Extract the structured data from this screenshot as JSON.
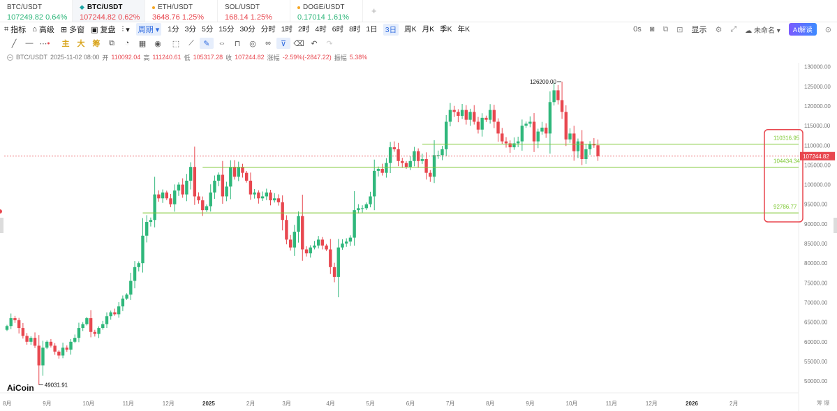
{
  "tabs": [
    {
      "symbol": "BTC/USDT",
      "price": "107249.82",
      "change": "0.64%",
      "trend": "up",
      "icon": "none"
    },
    {
      "symbol": "BTC/USDT",
      "price": "107244.82",
      "change": "0.62%",
      "trend": "down",
      "icon": "exchange-icon",
      "active": true
    },
    {
      "symbol": "ETH/USDT",
      "price": "3648.76",
      "change": "1.25%",
      "trend": "down",
      "icon": "orange-dot-icon"
    },
    {
      "symbol": "SOL/USDT",
      "price": "168.14",
      "change": "1.25%",
      "trend": "down",
      "icon": "none"
    },
    {
      "symbol": "DOGE/USDT",
      "price": "0.17014",
      "change": "1.61%",
      "trend": "up",
      "icon": "orange-dot-icon"
    }
  ],
  "add_tab": "+",
  "toolbar": {
    "indicators": "指标",
    "advanced": "高级",
    "multi_chart": "多窗",
    "replay": "复盘",
    "period": "周期",
    "timeframes": [
      "1分",
      "3分",
      "5分",
      "15分",
      "30分",
      "分时",
      "1时",
      "2时",
      "4时",
      "6时",
      "8时",
      "1日",
      "3日",
      "周K",
      "月K",
      "季K",
      "年K"
    ],
    "selected_timeframe": "3日",
    "countdown": "0s",
    "display": "显示",
    "layout_name": "未命名",
    "ai_label": "AI解读"
  },
  "drawing_tools": {
    "main_label": "主",
    "large_label": "大",
    "chip_label": "筹"
  },
  "infobar": {
    "symbol": "BTC/USDT",
    "datetime": "2025-11-02 08:00",
    "open_label": "开",
    "open": "110092.04",
    "high_label": "高",
    "high": "111240.61",
    "low_label": "低",
    "low": "105317.28",
    "close_label": "收",
    "close": "107244.82",
    "change_label": "涨幅",
    "change": "-2.59%(-2847.22)",
    "amp_label": "振幅",
    "amp": "5.38%"
  },
  "colors": {
    "up": "#2fb77b",
    "down": "#e8474f",
    "level_line": "#7dc832",
    "highlight_box": "#e8474f"
  },
  "chart_data": {
    "type": "candlestick",
    "symbol": "BTC/USDT",
    "interval": "3日",
    "ylim": [
      47000,
      131000
    ],
    "y_ticks": [
      50000,
      55000,
      60000,
      65000,
      70000,
      75000,
      80000,
      85000,
      90000,
      95000,
      100000,
      105000,
      110000,
      115000,
      120000,
      125000,
      130000
    ],
    "y_tick_labels": [
      "50000.00",
      "55000.00",
      "60000.00",
      "65000.00",
      "70000.00",
      "75000.00",
      "80000.00",
      "85000.00",
      "90000.00",
      "95000.00",
      "100000.00",
      "105000.00",
      "110000.00",
      "115000.00",
      "120000.00",
      "125000.00",
      "130000.00"
    ],
    "x_ticks": [
      {
        "label": "8月",
        "t": 0
      },
      {
        "label": "9月",
        "t": 10
      },
      {
        "label": "10月",
        "t": 20
      },
      {
        "label": "11月",
        "t": 30
      },
      {
        "label": "12月",
        "t": 40
      },
      {
        "label": "2025",
        "t": 50
      },
      {
        "label": "2月",
        "t": 61
      },
      {
        "label": "3月",
        "t": 70
      },
      {
        "label": "4月",
        "t": 81
      },
      {
        "label": "5月",
        "t": 91
      },
      {
        "label": "6月",
        "t": 101
      },
      {
        "label": "7月",
        "t": 111
      },
      {
        "label": "8月",
        "t": 121
      },
      {
        "label": "9月",
        "t": 131
      },
      {
        "label": "10月",
        "t": 141
      },
      {
        "label": "11月",
        "t": 151
      },
      {
        "label": "12月",
        "t": 161
      },
      {
        "label": "2026",
        "t": 171
      },
      {
        "label": "2月",
        "t": 182
      }
    ],
    "close_series": [
      64000,
      66000,
      65500,
      63500,
      61500,
      60000,
      61000,
      59000,
      54000,
      58500,
      60000,
      59000,
      57500,
      56500,
      58500,
      58000,
      60000,
      61000,
      63500,
      64500,
      66000,
      62500,
      62000,
      63500,
      64500,
      66500,
      67500,
      67000,
      69000,
      71000,
      72000,
      75500,
      79000,
      80000,
      87000,
      90500,
      91000,
      97500,
      96500,
      98000,
      96500,
      95000,
      98500,
      100000,
      97500,
      101000,
      104500,
      97000,
      96000,
      93500,
      94500,
      98000,
      101000,
      102500,
      97000,
      99500,
      104500,
      102000,
      104500,
      103000,
      101000,
      97500,
      98000,
      96500,
      97000,
      98000,
      96000,
      96500,
      95500,
      91000,
      86000,
      84000,
      88000,
      92000,
      83500,
      82500,
      84000,
      84500,
      86000,
      84500,
      83500,
      79000,
      76500,
      84000,
      85000,
      85500,
      86500,
      93500,
      94000,
      94000,
      95000,
      97000,
      103500,
      104000,
      103000,
      105500,
      109500,
      109000,
      106000,
      105500,
      104500,
      106000,
      108500,
      106000,
      106500,
      103000,
      102000,
      107500,
      107500,
      109000,
      116000,
      119000,
      118500,
      117500,
      119000,
      116500,
      118500,
      116000,
      114000,
      117000,
      116500,
      119000,
      116000,
      113000,
      111000,
      110500,
      109500,
      110500,
      111000,
      115000,
      115500,
      116000,
      111000,
      113500,
      114500,
      113000,
      121000,
      124000,
      121500,
      118500,
      111500,
      113000,
      108500,
      111000,
      106500,
      109000,
      110300,
      110000,
      107245
    ],
    "annotations": [
      {
        "label": "126200.00",
        "type": "high-marker",
        "value": 126200
      },
      {
        "label": "49031.91",
        "type": "low-marker",
        "value": 49031.91
      },
      {
        "label": "110316.95",
        "type": "horizontal-level",
        "value": 110316.95
      },
      {
        "label": "104434.34",
        "type": "horizontal-level",
        "value": 104434.34
      },
      {
        "label": "92786.77",
        "type": "horizontal-level",
        "value": 92786.77
      },
      {
        "label": "107244.82",
        "type": "current-price",
        "value": 107244.82
      }
    ],
    "watermark": "AiCoin",
    "axis_corner": "筹 爆"
  }
}
